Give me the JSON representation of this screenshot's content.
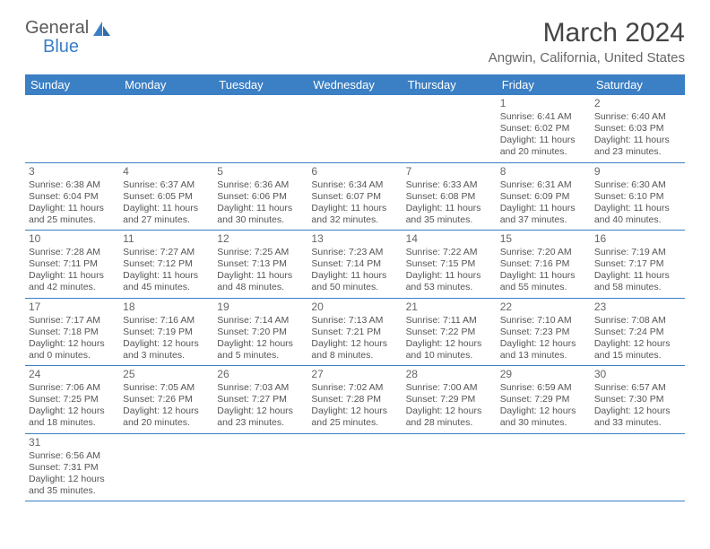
{
  "brand": {
    "part1": "General",
    "part2": "Blue"
  },
  "title": "March 2024",
  "location": "Angwin, California, United States",
  "colors": {
    "header_bg": "#3b7fc4",
    "header_text": "#ffffff",
    "border": "#3b7fc4",
    "body_text": "#555555",
    "title_text": "#444444"
  },
  "day_headers": [
    "Sunday",
    "Monday",
    "Tuesday",
    "Wednesday",
    "Thursday",
    "Friday",
    "Saturday"
  ],
  "weeks": [
    [
      null,
      null,
      null,
      null,
      null,
      {
        "n": "1",
        "sr": "6:41 AM",
        "ss": "6:02 PM",
        "dl": "11 hours and 20 minutes."
      },
      {
        "n": "2",
        "sr": "6:40 AM",
        "ss": "6:03 PM",
        "dl": "11 hours and 23 minutes."
      }
    ],
    [
      {
        "n": "3",
        "sr": "6:38 AM",
        "ss": "6:04 PM",
        "dl": "11 hours and 25 minutes."
      },
      {
        "n": "4",
        "sr": "6:37 AM",
        "ss": "6:05 PM",
        "dl": "11 hours and 27 minutes."
      },
      {
        "n": "5",
        "sr": "6:36 AM",
        "ss": "6:06 PM",
        "dl": "11 hours and 30 minutes."
      },
      {
        "n": "6",
        "sr": "6:34 AM",
        "ss": "6:07 PM",
        "dl": "11 hours and 32 minutes."
      },
      {
        "n": "7",
        "sr": "6:33 AM",
        "ss": "6:08 PM",
        "dl": "11 hours and 35 minutes."
      },
      {
        "n": "8",
        "sr": "6:31 AM",
        "ss": "6:09 PM",
        "dl": "11 hours and 37 minutes."
      },
      {
        "n": "9",
        "sr": "6:30 AM",
        "ss": "6:10 PM",
        "dl": "11 hours and 40 minutes."
      }
    ],
    [
      {
        "n": "10",
        "sr": "7:28 AM",
        "ss": "7:11 PM",
        "dl": "11 hours and 42 minutes."
      },
      {
        "n": "11",
        "sr": "7:27 AM",
        "ss": "7:12 PM",
        "dl": "11 hours and 45 minutes."
      },
      {
        "n": "12",
        "sr": "7:25 AM",
        "ss": "7:13 PM",
        "dl": "11 hours and 48 minutes."
      },
      {
        "n": "13",
        "sr": "7:23 AM",
        "ss": "7:14 PM",
        "dl": "11 hours and 50 minutes."
      },
      {
        "n": "14",
        "sr": "7:22 AM",
        "ss": "7:15 PM",
        "dl": "11 hours and 53 minutes."
      },
      {
        "n": "15",
        "sr": "7:20 AM",
        "ss": "7:16 PM",
        "dl": "11 hours and 55 minutes."
      },
      {
        "n": "16",
        "sr": "7:19 AM",
        "ss": "7:17 PM",
        "dl": "11 hours and 58 minutes."
      }
    ],
    [
      {
        "n": "17",
        "sr": "7:17 AM",
        "ss": "7:18 PM",
        "dl": "12 hours and 0 minutes."
      },
      {
        "n": "18",
        "sr": "7:16 AM",
        "ss": "7:19 PM",
        "dl": "12 hours and 3 minutes."
      },
      {
        "n": "19",
        "sr": "7:14 AM",
        "ss": "7:20 PM",
        "dl": "12 hours and 5 minutes."
      },
      {
        "n": "20",
        "sr": "7:13 AM",
        "ss": "7:21 PM",
        "dl": "12 hours and 8 minutes."
      },
      {
        "n": "21",
        "sr": "7:11 AM",
        "ss": "7:22 PM",
        "dl": "12 hours and 10 minutes."
      },
      {
        "n": "22",
        "sr": "7:10 AM",
        "ss": "7:23 PM",
        "dl": "12 hours and 13 minutes."
      },
      {
        "n": "23",
        "sr": "7:08 AM",
        "ss": "7:24 PM",
        "dl": "12 hours and 15 minutes."
      }
    ],
    [
      {
        "n": "24",
        "sr": "7:06 AM",
        "ss": "7:25 PM",
        "dl": "12 hours and 18 minutes."
      },
      {
        "n": "25",
        "sr": "7:05 AM",
        "ss": "7:26 PM",
        "dl": "12 hours and 20 minutes."
      },
      {
        "n": "26",
        "sr": "7:03 AM",
        "ss": "7:27 PM",
        "dl": "12 hours and 23 minutes."
      },
      {
        "n": "27",
        "sr": "7:02 AM",
        "ss": "7:28 PM",
        "dl": "12 hours and 25 minutes."
      },
      {
        "n": "28",
        "sr": "7:00 AM",
        "ss": "7:29 PM",
        "dl": "12 hours and 28 minutes."
      },
      {
        "n": "29",
        "sr": "6:59 AM",
        "ss": "7:29 PM",
        "dl": "12 hours and 30 minutes."
      },
      {
        "n": "30",
        "sr": "6:57 AM",
        "ss": "7:30 PM",
        "dl": "12 hours and 33 minutes."
      }
    ],
    [
      {
        "n": "31",
        "sr": "6:56 AM",
        "ss": "7:31 PM",
        "dl": "12 hours and 35 minutes."
      },
      null,
      null,
      null,
      null,
      null,
      null
    ]
  ],
  "labels": {
    "sunrise": "Sunrise: ",
    "sunset": "Sunset: ",
    "daylight": "Daylight: "
  }
}
